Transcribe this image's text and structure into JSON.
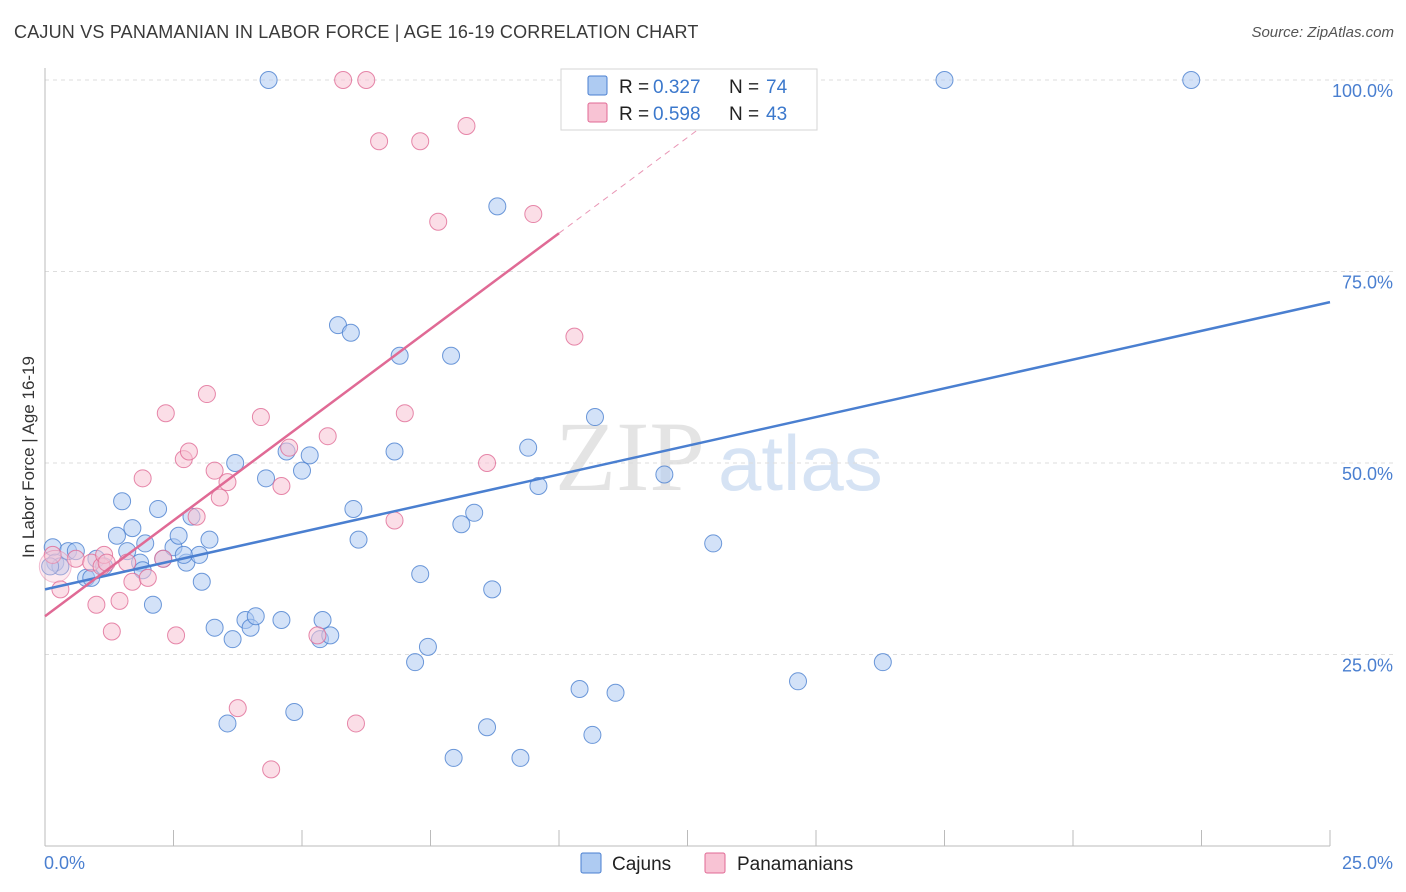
{
  "title": "CAJUN VS PANAMANIAN IN LABOR FORCE | AGE 16-19 CORRELATION CHART",
  "source": "Source: ZipAtlas.com",
  "watermark": {
    "part1": "ZIP",
    "part2": "atlas"
  },
  "chart_data": {
    "type": "scatter",
    "ylabel": "In Labor Force | Age 16-19",
    "xlim": [
      0,
      25
    ],
    "ylim": [
      0,
      100
    ],
    "x_tick_labels": [
      "0.0%",
      "25.0%"
    ],
    "y_ticks": [
      25,
      50,
      75,
      100
    ],
    "y_tick_labels": [
      "25.0%",
      "50.0%",
      "75.0%",
      "100.0%"
    ],
    "colors": {
      "cajuns": "#4a7fd0",
      "cajuns_fill": "#aecbf2",
      "panamanians": "#e06a95",
      "panamanians_fill": "#f8c3d4"
    },
    "legend": [
      {
        "series": "Cajuns",
        "r_label": "R =",
        "r": "0.327",
        "n_label": "N =",
        "n": "74"
      },
      {
        "series": "Panamanians",
        "r_label": "R =",
        "r": "0.598",
        "n_label": "N =",
        "n": "43"
      }
    ],
    "series": [
      {
        "name": "Cajuns",
        "trend": {
          "x0": 0,
          "y0": 33.5,
          "x1": 25,
          "y1": 71
        },
        "points": [
          [
            0.15,
            39
          ],
          [
            0.2,
            37
          ],
          [
            0.3,
            36.5
          ],
          [
            0.45,
            38.5
          ],
          [
            0.6,
            38.5
          ],
          [
            0.8,
            35
          ],
          [
            0.9,
            35
          ],
          [
            1.0,
            37.5
          ],
          [
            1.15,
            36.5
          ],
          [
            1.4,
            40.5
          ],
          [
            1.5,
            45
          ],
          [
            1.6,
            38.5
          ],
          [
            1.7,
            41.5
          ],
          [
            1.85,
            37
          ],
          [
            1.95,
            39.5
          ],
          [
            2.1,
            31.5
          ],
          [
            2.2,
            44
          ],
          [
            2.3,
            37.5
          ],
          [
            2.5,
            39
          ],
          [
            2.6,
            40.5
          ],
          [
            2.75,
            37
          ],
          [
            2.85,
            43
          ],
          [
            3.0,
            38
          ],
          [
            3.05,
            34.5
          ],
          [
            3.2,
            40
          ],
          [
            3.3,
            28.5
          ],
          [
            3.55,
            16
          ],
          [
            3.65,
            27
          ],
          [
            3.7,
            50
          ],
          [
            3.9,
            29.5
          ],
          [
            4.0,
            28.5
          ],
          [
            4.1,
            30
          ],
          [
            4.3,
            48
          ],
          [
            4.35,
            100
          ],
          [
            4.6,
            29.5
          ],
          [
            4.7,
            51.5
          ],
          [
            4.85,
            17.5
          ],
          [
            5.0,
            49
          ],
          [
            5.15,
            51
          ],
          [
            5.35,
            27
          ],
          [
            5.4,
            29.5
          ],
          [
            5.55,
            27.5
          ],
          [
            5.7,
            68
          ],
          [
            5.95,
            67
          ],
          [
            6.0,
            44
          ],
          [
            6.1,
            40
          ],
          [
            6.8,
            51.5
          ],
          [
            6.9,
            64
          ],
          [
            7.2,
            24
          ],
          [
            7.3,
            35.5
          ],
          [
            7.45,
            26
          ],
          [
            7.9,
            64
          ],
          [
            7.95,
            11.5
          ],
          [
            8.1,
            42
          ],
          [
            8.35,
            43.5
          ],
          [
            8.6,
            15.5
          ],
          [
            8.7,
            33.5
          ],
          [
            8.8,
            83.5
          ],
          [
            9.25,
            11.5
          ],
          [
            9.4,
            52
          ],
          [
            9.6,
            47
          ],
          [
            10.4,
            20.5
          ],
          [
            10.65,
            14.5
          ],
          [
            10.7,
            56
          ],
          [
            11.1,
            20
          ],
          [
            12.05,
            48.5
          ],
          [
            13.0,
            39.5
          ],
          [
            14.65,
            21.5
          ],
          [
            16.3,
            24
          ],
          [
            17.5,
            100
          ],
          [
            22.3,
            100
          ],
          [
            0.1,
            36.5
          ],
          [
            1.9,
            36
          ],
          [
            2.7,
            38
          ]
        ]
      },
      {
        "name": "Panamanians",
        "trend": {
          "x0": 0,
          "y0": 30,
          "x1": 10,
          "y1": 80
        },
        "trend_dashed": {
          "x0": 10,
          "y0": 80,
          "x1": 12.9,
          "y1": 94.5
        },
        "points": [
          [
            0.15,
            38
          ],
          [
            0.3,
            33.5
          ],
          [
            0.6,
            37.5
          ],
          [
            0.9,
            37
          ],
          [
            1.0,
            31.5
          ],
          [
            1.1,
            36.5
          ],
          [
            1.15,
            38
          ],
          [
            1.3,
            28
          ],
          [
            1.45,
            32
          ],
          [
            1.6,
            37
          ],
          [
            1.7,
            34.5
          ],
          [
            1.9,
            48
          ],
          [
            2.0,
            35
          ],
          [
            2.3,
            37.5
          ],
          [
            2.35,
            56.5
          ],
          [
            2.55,
            27.5
          ],
          [
            2.7,
            50.5
          ],
          [
            2.8,
            51.5
          ],
          [
            2.95,
            43
          ],
          [
            3.15,
            59
          ],
          [
            3.3,
            49
          ],
          [
            3.4,
            45.5
          ],
          [
            3.55,
            47.5
          ],
          [
            3.75,
            18
          ],
          [
            4.2,
            56
          ],
          [
            4.4,
            10
          ],
          [
            4.6,
            47
          ],
          [
            4.75,
            52
          ],
          [
            5.3,
            27.5
          ],
          [
            5.5,
            53.5
          ],
          [
            5.8,
            100
          ],
          [
            6.05,
            16
          ],
          [
            6.25,
            100
          ],
          [
            6.5,
            92
          ],
          [
            6.8,
            42.5
          ],
          [
            7.0,
            56.5
          ],
          [
            7.3,
            92
          ],
          [
            7.65,
            81.5
          ],
          [
            8.2,
            94
          ],
          [
            8.6,
            50
          ],
          [
            9.5,
            82.5
          ],
          [
            10.3,
            66.5
          ],
          [
            1.2,
            37
          ]
        ]
      }
    ]
  }
}
